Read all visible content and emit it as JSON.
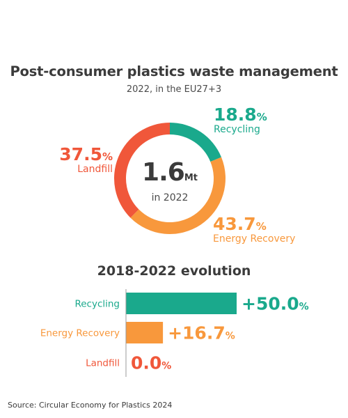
{
  "header": {
    "title": "Post-consumer plastics waste management",
    "subtitle": "2022, in the EU27+3"
  },
  "donut_center": {
    "value": "1.6",
    "unit": "Mt",
    "caption": "in 2022"
  },
  "section_title": "2018-2022 evolution",
  "source": "Source: Circular Economy for Plastics 2024",
  "colors": {
    "recycling": "#1aa98c",
    "energy_recovery": "#f8983c",
    "landfill": "#f0573a"
  },
  "chart_data": [
    {
      "type": "pie",
      "title": "Post-consumer plastics waste management",
      "subtitle": "2022, in the EU27+3",
      "total": 1.6,
      "unit": "Mt",
      "slices": [
        {
          "label": "Recycling",
          "value": 18.8,
          "display": "18.8",
          "pct_sign": "%",
          "color": "#1aa98c"
        },
        {
          "label": "Energy Recovery",
          "value": 43.7,
          "display": "43.7",
          "pct_sign": "%",
          "color": "#f8983c"
        },
        {
          "label": "Landfill",
          "value": 37.5,
          "display": "37.5",
          "pct_sign": "%",
          "color": "#f0573a"
        }
      ]
    },
    {
      "type": "bar",
      "orientation": "horizontal",
      "title": "2018-2022 evolution",
      "categories": [
        "Recycling",
        "Energy Recovery",
        "Landfill"
      ],
      "values": [
        50.0,
        16.7,
        0.0
      ],
      "display": [
        "+50.0",
        "+16.7",
        "0.0"
      ],
      "pct_sign": "%",
      "colors": [
        "#1aa98c",
        "#f8983c",
        "#f0573a"
      ],
      "xlim": [
        0,
        50
      ]
    }
  ]
}
